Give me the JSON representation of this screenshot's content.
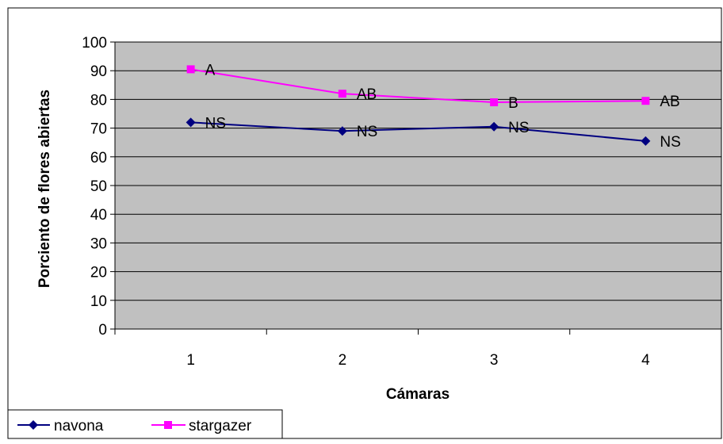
{
  "chart_data": {
    "type": "line",
    "title": "",
    "xlabel": "Cámaras",
    "ylabel": "Porciento de flores abiertas",
    "categories": [
      "1",
      "2",
      "3",
      "4"
    ],
    "ylim": [
      0,
      100
    ],
    "yticks": [
      0,
      10,
      20,
      30,
      40,
      50,
      60,
      70,
      80,
      90,
      100
    ],
    "grid": true,
    "legend_position": "bottom-left",
    "plot_background": "#c0c0c0",
    "series": [
      {
        "name": "navona",
        "color": "#000080",
        "marker": "diamond",
        "values": [
          72,
          69,
          70.5,
          65.5
        ],
        "labels": [
          "NS",
          "NS",
          "NS",
          "NS"
        ]
      },
      {
        "name": "stargazer",
        "color": "#ff00ff",
        "marker": "square",
        "values": [
          90.5,
          82,
          79,
          79.5
        ],
        "labels": [
          "A",
          "AB",
          "B",
          "AB"
        ]
      }
    ]
  }
}
